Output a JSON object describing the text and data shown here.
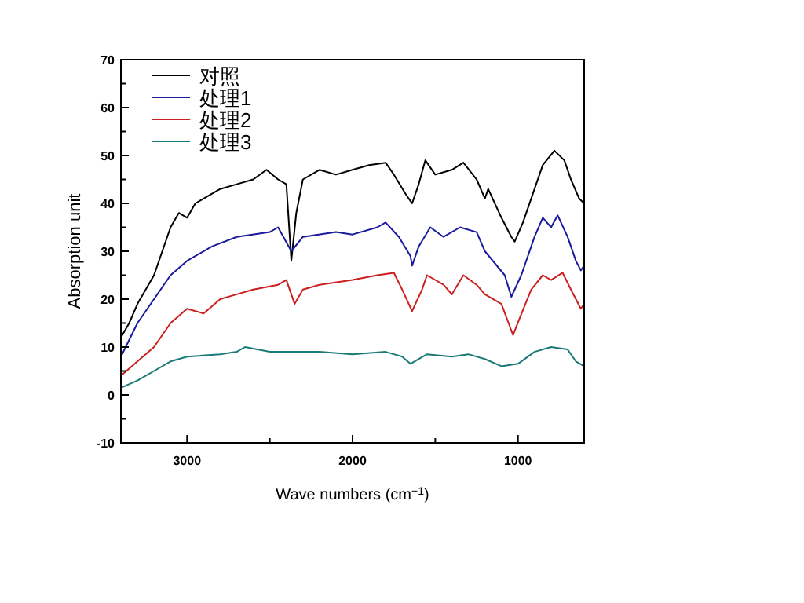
{
  "chart_data": {
    "type": "line",
    "xlabel": "Wave numbers (cm$^{−1}$)",
    "ylabel": "Absorption unit",
    "xlim": [
      3400,
      600
    ],
    "xticks": [
      3000,
      {
        "value": 2500,
        "label": null
      },
      2000,
      {
        "value": 1500,
        "label": null
      },
      1000
    ],
    "ylim": [
      -10,
      70
    ],
    "yticks": [
      -10,
      {
        "value": -5,
        "label": null
      },
      0,
      {
        "value": 5,
        "label": null
      },
      10,
      {
        "value": 15,
        "label": null
      },
      20,
      {
        "value": 25,
        "label": null
      },
      30,
      {
        "value": 35,
        "label": null
      },
      40,
      {
        "value": 45,
        "label": null
      },
      50,
      {
        "value": 55,
        "label": null
      },
      60,
      {
        "value": 65,
        "label": null
      },
      70
    ],
    "grid": false,
    "legend": "top left",
    "marker": "none",
    "line_style": "solid",
    "series": [
      {
        "name": "对照",
        "color": "#000000",
        "x": [
          3400,
          3350,
          3300,
          3250,
          3200,
          3150,
          3100,
          3050,
          3000,
          2950,
          2900,
          2800,
          2700,
          2600,
          2520,
          2450,
          2400,
          2370,
          2340,
          2300,
          2200,
          2100,
          2000,
          1900,
          1800,
          1750,
          1680,
          1640,
          1600,
          1560,
          1500,
          1400,
          1330,
          1250,
          1200,
          1180,
          1100,
          1040,
          1020,
          970,
          900,
          850,
          780,
          720,
          680,
          630,
          600
        ],
        "values": [
          12,
          15,
          19,
          22,
          25,
          30,
          35,
          38,
          37,
          40,
          41,
          43,
          44,
          45,
          47,
          45,
          44,
          28,
          38,
          45,
          47,
          46,
          47,
          48,
          48.5,
          46,
          42,
          40,
          44,
          49,
          46,
          47,
          48.5,
          45,
          41,
          43,
          37,
          33,
          32,
          36,
          43,
          48,
          51,
          49,
          45,
          41,
          40
        ]
      },
      {
        "name": "处理1",
        "color": "#1a1a9c",
        "x": [
          3400,
          3300,
          3200,
          3100,
          3000,
          2850,
          2700,
          2500,
          2450,
          2370,
          2300,
          2100,
          2000,
          1850,
          1800,
          1720,
          1650,
          1640,
          1600,
          1530,
          1450,
          1350,
          1250,
          1200,
          1080,
          1040,
          980,
          900,
          850,
          800,
          760,
          700,
          650,
          620,
          600
        ],
        "values": [
          8,
          15,
          20,
          25,
          28,
          31,
          33,
          34,
          35,
          30,
          33,
          34,
          33.5,
          35,
          36,
          33,
          29,
          27,
          31,
          35,
          33,
          35,
          34,
          30,
          25,
          20.5,
          25,
          33,
          37,
          35,
          37.5,
          33,
          28,
          26,
          27
        ]
      },
      {
        "name": "处理2",
        "color": "#cc2020",
        "x": [
          3400,
          3300,
          3200,
          3100,
          3000,
          2900,
          2800,
          2700,
          2600,
          2450,
          2400,
          2350,
          2300,
          2200,
          2000,
          1850,
          1750,
          1700,
          1640,
          1580,
          1550,
          1450,
          1400,
          1330,
          1250,
          1200,
          1100,
          1030,
          990,
          920,
          850,
          800,
          730,
          680,
          620,
          600
        ],
        "values": [
          4,
          7,
          10,
          15,
          18,
          17,
          20,
          21,
          22,
          23,
          24,
          19,
          22,
          23,
          24,
          25,
          25.5,
          22,
          17.5,
          22,
          25,
          23,
          21,
          25,
          23,
          21,
          19,
          12.5,
          16,
          22,
          25,
          24,
          25.5,
          22,
          18,
          19
        ]
      },
      {
        "name": "处理3",
        "color": "#1a7a7a",
        "x": [
          3400,
          3300,
          3200,
          3100,
          3000,
          2800,
          2700,
          2650,
          2500,
          2200,
          2000,
          1800,
          1700,
          1650,
          1550,
          1400,
          1300,
          1200,
          1100,
          1000,
          900,
          800,
          700,
          650,
          600
        ],
        "values": [
          1.5,
          3,
          5,
          7,
          8,
          8.5,
          9,
          10,
          9,
          9,
          8.5,
          9,
          8,
          6.5,
          8.5,
          8,
          8.5,
          7.5,
          6,
          6.5,
          9,
          10,
          9.5,
          7,
          6
        ]
      }
    ]
  }
}
